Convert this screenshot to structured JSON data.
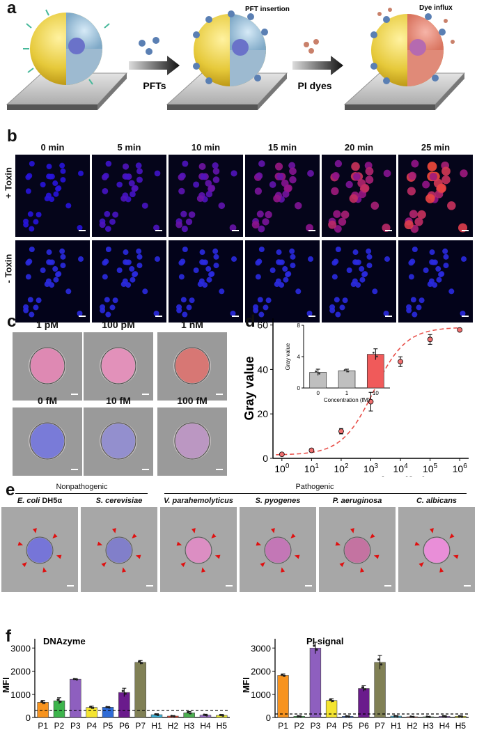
{
  "panels": {
    "a": {
      "label": "a",
      "arrow1": "PFTs",
      "arrow2": "PI dyes",
      "annot1": "PFT insertion",
      "annot2": "Dye influx"
    },
    "b": {
      "label": "b",
      "times": [
        "0 min",
        "5 min",
        "10 min",
        "15 min",
        "20 min",
        "25 min"
      ],
      "row1": "+ Toxin",
      "row2": "- Toxin",
      "intensity": [
        0.0,
        0.2,
        0.35,
        0.55,
        0.8,
        1.0
      ]
    },
    "c": {
      "label": "c",
      "top": [
        "1 pM",
        "100 pM",
        "1 nM"
      ],
      "bottom": [
        "0 fM",
        "10 fM",
        "100 fM"
      ]
    },
    "d": {
      "label": "d"
    },
    "e": {
      "label": "e",
      "group1": "Nonpathogenic",
      "group2": "Pathogenic",
      "organisms": [
        {
          "name": "E. coli",
          "suffix": " DH5α"
        },
        {
          "name": "S. cerevisiae",
          "suffix": ""
        },
        {
          "name": "V. parahemolyticus",
          "suffix": ""
        },
        {
          "name": "S. pyogenes",
          "suffix": ""
        },
        {
          "name": "P. aeruginosa",
          "suffix": ""
        },
        {
          "name": "C. albicans",
          "suffix": ""
        }
      ]
    },
    "f": {
      "label": "f"
    }
  },
  "chart_data": [
    {
      "type": "scatter",
      "id": "d-main",
      "xlabel": "Concentration (fM)",
      "ylabel": "Gray value",
      "xscale": "log",
      "xlim": [
        0.5,
        2000000
      ],
      "ylim": [
        0,
        63
      ],
      "xticks": [
        "10^0",
        "10^1",
        "10^2",
        "10^3",
        "10^4",
        "10^5",
        "10^6"
      ],
      "yticks": [
        0,
        20,
        40,
        60
      ],
      "x": [
        1,
        10,
        100,
        1000,
        10000,
        100000,
        1000000
      ],
      "y": [
        1.8,
        3.6,
        12.2,
        25.5,
        43.5,
        53.5,
        57.8
      ],
      "err": [
        0.6,
        0.8,
        1.2,
        4.2,
        2.2,
        2.2,
        0.6
      ],
      "fit": "sigmoid",
      "fit_color": "#e8504a",
      "point_color": "#f07070"
    },
    {
      "type": "bar",
      "id": "d-inset",
      "xlabel": "Concentration (fM)",
      "ylabel": "Gray value",
      "categories": [
        "0",
        "1",
        "10"
      ],
      "values": [
        2.0,
        2.2,
        4.3
      ],
      "err": [
        0.4,
        0.2,
        0.7
      ],
      "colors": [
        "#bfbfbf",
        "#bfbfbf",
        "#f05a5a"
      ],
      "ylim": [
        0,
        8
      ],
      "yticks": [
        0,
        4,
        8
      ]
    },
    {
      "type": "bar",
      "id": "f-dnazyme",
      "title": "DNAzyme",
      "ylabel": "MFI",
      "categories": [
        "P1",
        "P2",
        "P3",
        "P4",
        "P5",
        "P6",
        "P7",
        "H1",
        "H2",
        "H3",
        "H4",
        "H5"
      ],
      "values": [
        650,
        720,
        1650,
        430,
        440,
        1080,
        2380,
        120,
        60,
        200,
        100,
        90
      ],
      "err": [
        80,
        130,
        30,
        60,
        30,
        180,
        80,
        40,
        20,
        60,
        40,
        40
      ],
      "colors": [
        "#f7931e",
        "#3cb44b",
        "#8e5fbf",
        "#f4e430",
        "#2e6bd6",
        "#6a1b8c",
        "#808055",
        "#3fb3d8",
        "#e8402a",
        "#4caf50",
        "#9c6fc9",
        "#e8e830"
      ],
      "threshold": 310,
      "ylim": [
        0,
        3400
      ],
      "yticks": [
        0,
        1000,
        2000,
        3000
      ]
    },
    {
      "type": "bar",
      "id": "f-pi",
      "title": "PI signal",
      "ylabel": "MFI",
      "categories": [
        "P1",
        "P2",
        "P3",
        "P4",
        "P5",
        "P6",
        "P7",
        "H1",
        "H2",
        "H3",
        "H4",
        "H5"
      ],
      "values": [
        1820,
        50,
        3000,
        730,
        50,
        1250,
        2380,
        60,
        30,
        30,
        50,
        50
      ],
      "err": [
        60,
        20,
        250,
        80,
        20,
        120,
        300,
        20,
        20,
        20,
        30,
        20
      ],
      "colors": [
        "#f7931e",
        "#3cb44b",
        "#8e5fbf",
        "#f4e430",
        "#2e6bd6",
        "#6a1b8c",
        "#808055",
        "#3fb3d8",
        "#e8402a",
        "#4caf50",
        "#9c6fc9",
        "#e8e830"
      ],
      "threshold": 150,
      "ylim": [
        0,
        3400
      ],
      "yticks": [
        0,
        1000,
        2000,
        3000
      ]
    }
  ]
}
